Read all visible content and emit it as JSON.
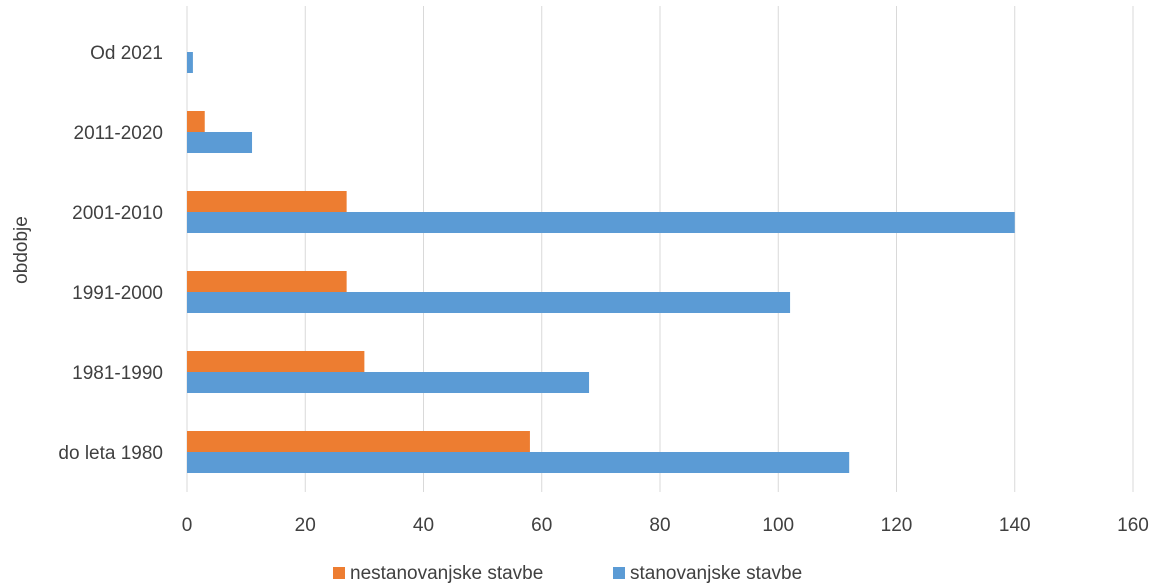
{
  "chart_data": {
    "type": "bar",
    "orientation": "horizontal",
    "title": "",
    "ylabel": "obdobje",
    "xlabel": "",
    "categories": [
      "Od 2021",
      "2011-2020",
      "2001-2010",
      "1991-2000",
      "1981-1990",
      "do leta 1980"
    ],
    "series": [
      {
        "name": "nestanovanjske stavbe",
        "color": "#ED7D31",
        "values": [
          0,
          3,
          27,
          27,
          30,
          58
        ]
      },
      {
        "name": "stanovanjske stavbe",
        "color": "#5B9BD5",
        "values": [
          1,
          11,
          140,
          102,
          68,
          112
        ]
      }
    ],
    "xlim": [
      0,
      160
    ],
    "xticks": [
      0,
      20,
      40,
      60,
      80,
      100,
      120,
      140,
      160
    ],
    "grid": "vertical",
    "legend": "bottom"
  }
}
